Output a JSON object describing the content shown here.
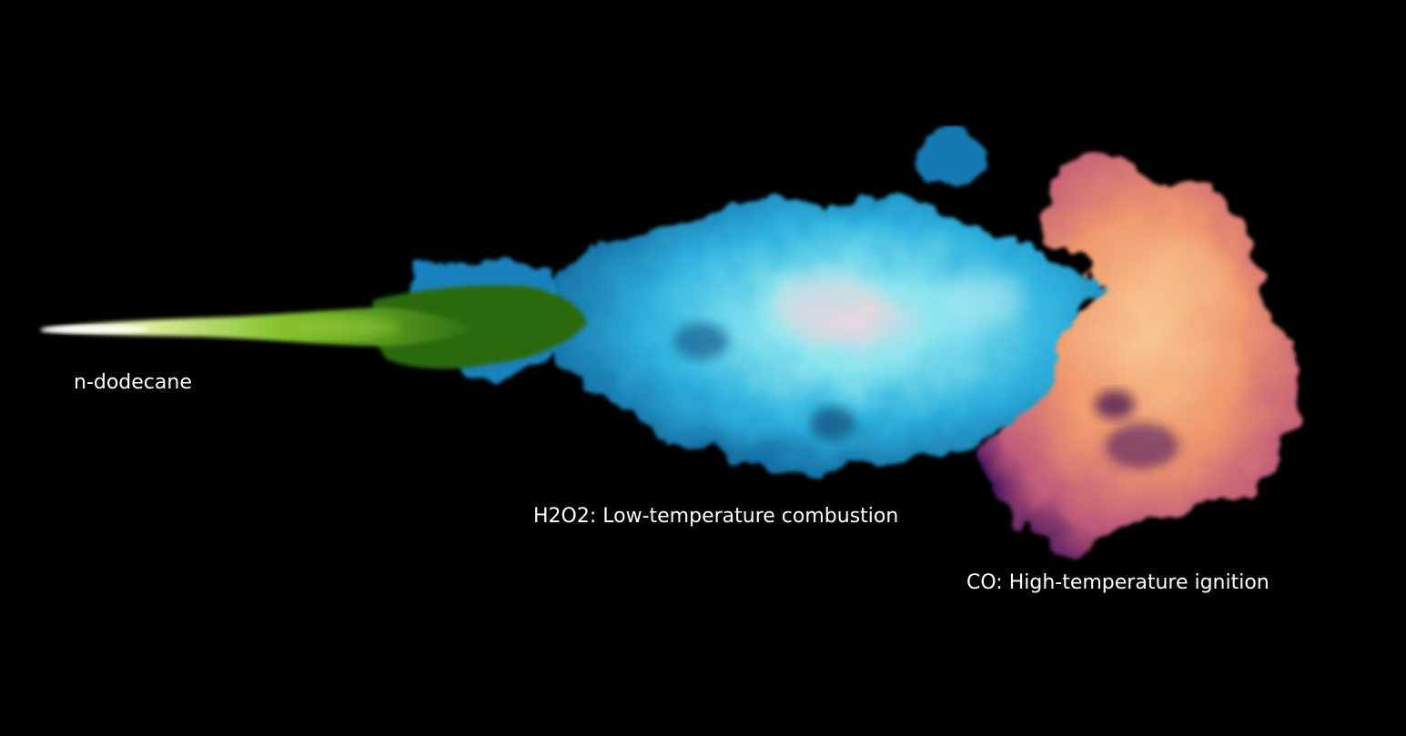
{
  "labels": {
    "fuel": "n-dodecane",
    "low_temperature": "H2O2: Low-temperature combustion",
    "high_temperature": "CO: High-temperature ignition"
  },
  "colors": {
    "background": "#000000",
    "fuel_core": "#f5f5e6",
    "fuel_green": "#7fbf2a",
    "fuel_dark_green": "#1f5a10",
    "h2o2_blue": "#1e9fd6",
    "h2o2_cyan": "#6fe3ee",
    "h2o2_highlight": "#e8d8de",
    "co_orange": "#f19a6e",
    "co_peach": "#f7c08a",
    "co_purple": "#5a1a5c",
    "text": "#ffffff"
  }
}
